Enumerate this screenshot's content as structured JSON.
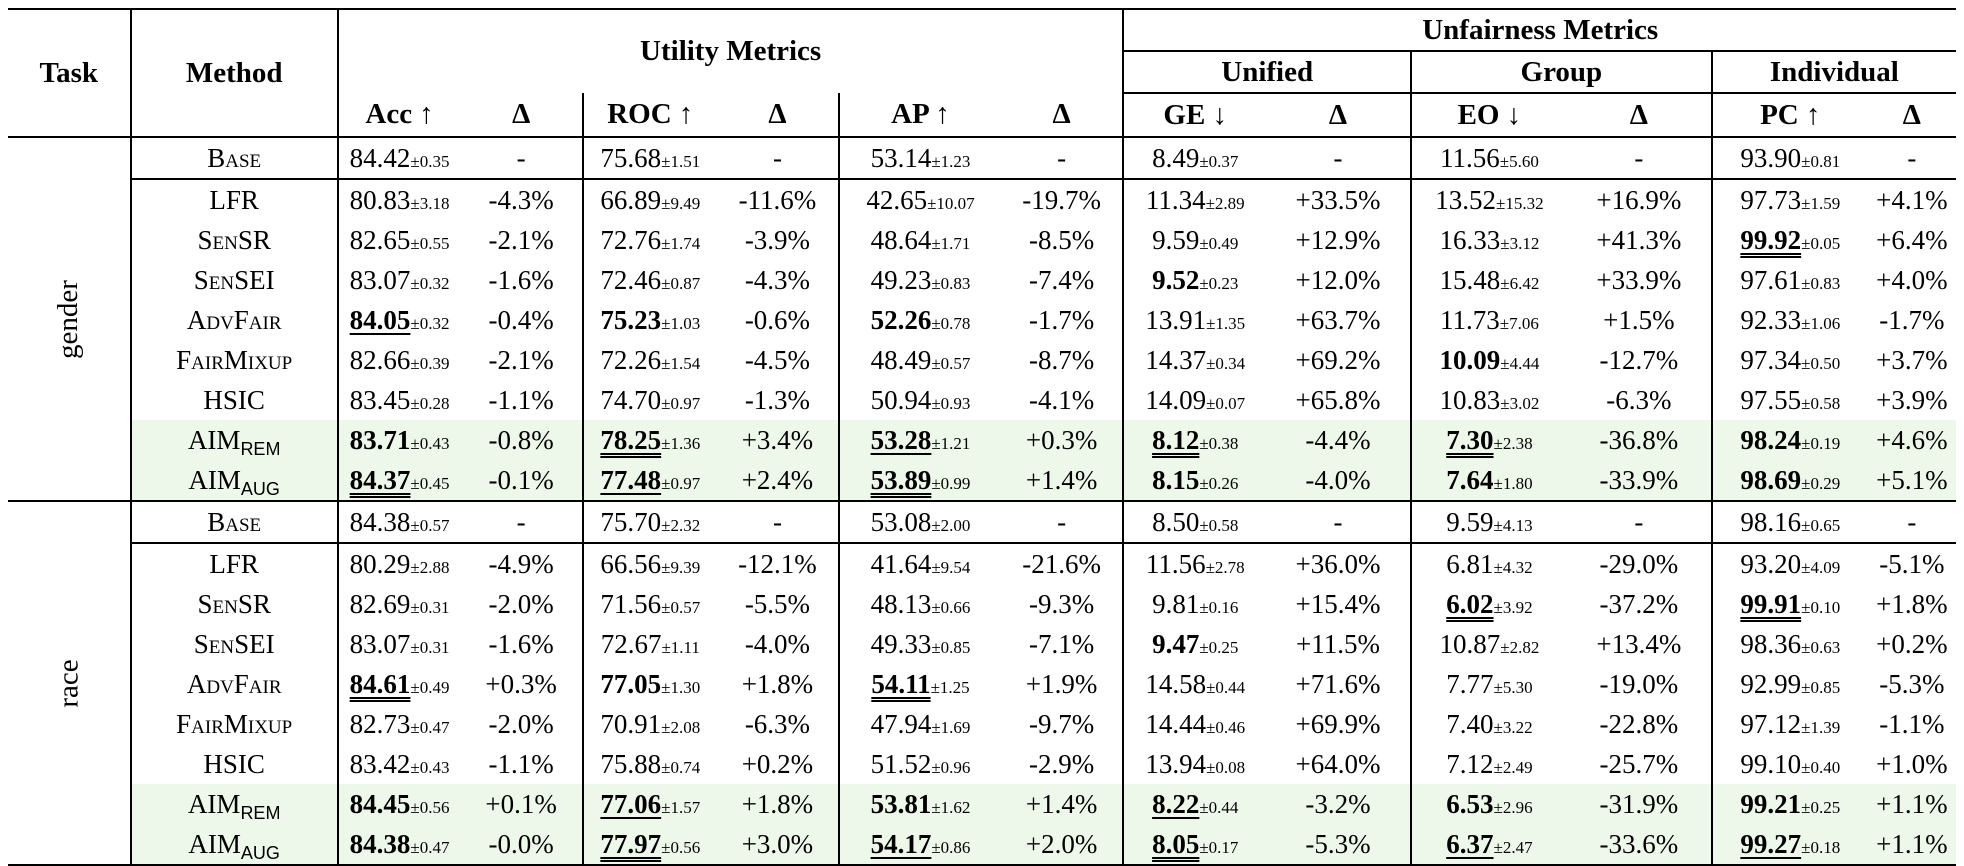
{
  "header": {
    "task": "Task",
    "method": "Method",
    "utility_metrics": "Utility Metrics",
    "unfairness_metrics": "Unfairness Metrics",
    "unified": "Unified",
    "group": "Group",
    "individual": "Individual",
    "cols": [
      "Acc ↑",
      "Δ",
      "ROC ↑",
      "Δ",
      "AP ↑",
      "Δ",
      "GE ↓",
      "Δ",
      "EO ↓",
      "Δ",
      "PC ↑",
      "Δ"
    ]
  },
  "groups": [
    {
      "task": "gender",
      "rows": [
        {
          "method": "Base",
          "smallcaps": true,
          "cells": [
            {
              "v": "84.42",
              "s": "±0.35"
            },
            {
              "v": "-"
            },
            {
              "v": "75.68",
              "s": "±1.51"
            },
            {
              "v": "-"
            },
            {
              "v": "53.14",
              "s": "±1.23"
            },
            {
              "v": "-"
            },
            {
              "v": "8.49",
              "s": "±0.37"
            },
            {
              "v": "-"
            },
            {
              "v": "11.56",
              "s": "±5.60"
            },
            {
              "v": "-"
            },
            {
              "v": "93.90",
              "s": "±0.81"
            },
            {
              "v": "-"
            }
          ]
        },
        {
          "method": "LFR",
          "cells": [
            {
              "v": "80.83",
              "s": "±3.18"
            },
            {
              "v": "-4.3%"
            },
            {
              "v": "66.89",
              "s": "±9.49"
            },
            {
              "v": "-11.6%"
            },
            {
              "v": "42.65",
              "s": "±10.07"
            },
            {
              "v": "-19.7%"
            },
            {
              "v": "11.34",
              "s": "±2.89"
            },
            {
              "v": "+33.5%"
            },
            {
              "v": "13.52",
              "s": "±15.32"
            },
            {
              "v": "+16.9%"
            },
            {
              "v": "97.73",
              "s": "±1.59"
            },
            {
              "v": "+4.1%"
            }
          ]
        },
        {
          "method": "SenSR",
          "smallcaps": true,
          "cells": [
            {
              "v": "82.65",
              "s": "±0.55"
            },
            {
              "v": "-2.1%"
            },
            {
              "v": "72.76",
              "s": "±1.74"
            },
            {
              "v": "-3.9%"
            },
            {
              "v": "48.64",
              "s": "±1.71"
            },
            {
              "v": "-8.5%"
            },
            {
              "v": "9.59",
              "s": "±0.49"
            },
            {
              "v": "+12.9%"
            },
            {
              "v": "16.33",
              "s": "±3.12"
            },
            {
              "v": "+41.3%"
            },
            {
              "v": "99.92",
              "s": "±0.05",
              "style": "b u2"
            },
            {
              "v": "+6.4%"
            }
          ]
        },
        {
          "method": "SenSEI",
          "smallcaps": true,
          "cells": [
            {
              "v": "83.07",
              "s": "±0.32"
            },
            {
              "v": "-1.6%"
            },
            {
              "v": "72.46",
              "s": "±0.87"
            },
            {
              "v": "-4.3%"
            },
            {
              "v": "49.23",
              "s": "±0.83"
            },
            {
              "v": "-7.4%"
            },
            {
              "v": "9.52",
              "s": "±0.23",
              "style": "b"
            },
            {
              "v": "+12.0%"
            },
            {
              "v": "15.48",
              "s": "±6.42"
            },
            {
              "v": "+33.9%"
            },
            {
              "v": "97.61",
              "s": "±0.83"
            },
            {
              "v": "+4.0%"
            }
          ]
        },
        {
          "method": "AdvFair",
          "smallcaps": true,
          "cells": [
            {
              "v": "84.05",
              "s": "±0.32",
              "style": "b u1"
            },
            {
              "v": "-0.4%"
            },
            {
              "v": "75.23",
              "s": "±1.03",
              "style": "b"
            },
            {
              "v": "-0.6%"
            },
            {
              "v": "52.26",
              "s": "±0.78",
              "style": "b"
            },
            {
              "v": "-1.7%"
            },
            {
              "v": "13.91",
              "s": "±1.35"
            },
            {
              "v": "+63.7%"
            },
            {
              "v": "11.73",
              "s": "±7.06"
            },
            {
              "v": "+1.5%"
            },
            {
              "v": "92.33",
              "s": "±1.06"
            },
            {
              "v": "-1.7%"
            }
          ]
        },
        {
          "method": "FairMixup",
          "smallcaps": true,
          "cells": [
            {
              "v": "82.66",
              "s": "±0.39"
            },
            {
              "v": "-2.1%"
            },
            {
              "v": "72.26",
              "s": "±1.54"
            },
            {
              "v": "-4.5%"
            },
            {
              "v": "48.49",
              "s": "±0.57"
            },
            {
              "v": "-8.7%"
            },
            {
              "v": "14.37",
              "s": "±0.34"
            },
            {
              "v": "+69.2%"
            },
            {
              "v": "10.09",
              "s": "±4.44",
              "style": "b"
            },
            {
              "v": "-12.7%"
            },
            {
              "v": "97.34",
              "s": "±0.50"
            },
            {
              "v": "+3.7%"
            }
          ]
        },
        {
          "method": "HSIC",
          "cells": [
            {
              "v": "83.45",
              "s": "±0.28"
            },
            {
              "v": "-1.1%"
            },
            {
              "v": "74.70",
              "s": "±0.97"
            },
            {
              "v": "-1.3%"
            },
            {
              "v": "50.94",
              "s": "±0.93"
            },
            {
              "v": "-4.1%"
            },
            {
              "v": "14.09",
              "s": "±0.07"
            },
            {
              "v": "+65.8%"
            },
            {
              "v": "10.83",
              "s": "±3.02"
            },
            {
              "v": "-6.3%"
            },
            {
              "v": "97.55",
              "s": "±0.58"
            },
            {
              "v": "+3.9%"
            }
          ]
        },
        {
          "method": "AIM",
          "sub": "REM",
          "hl": true,
          "cells": [
            {
              "v": "83.71",
              "s": "±0.43",
              "style": "b"
            },
            {
              "v": "-0.8%"
            },
            {
              "v": "78.25",
              "s": "±1.36",
              "style": "b u2"
            },
            {
              "v": "+3.4%"
            },
            {
              "v": "53.28",
              "s": "±1.21",
              "style": "b u1"
            },
            {
              "v": "+0.3%"
            },
            {
              "v": "8.12",
              "s": "±0.38",
              "style": "b u2"
            },
            {
              "v": "-4.4%"
            },
            {
              "v": "7.30",
              "s": "±2.38",
              "style": "b u2"
            },
            {
              "v": "-36.8%"
            },
            {
              "v": "98.24",
              "s": "±0.19",
              "style": "b"
            },
            {
              "v": "+4.6%"
            }
          ]
        },
        {
          "method": "AIM",
          "sub": "AUG",
          "hl": true,
          "cells": [
            {
              "v": "84.37",
              "s": "±0.45",
              "style": "b u2"
            },
            {
              "v": "-0.1%"
            },
            {
              "v": "77.48",
              "s": "±0.97",
              "style": "b u1"
            },
            {
              "v": "+2.4%"
            },
            {
              "v": "53.89",
              "s": "±0.99",
              "style": "b u2"
            },
            {
              "v": "+1.4%"
            },
            {
              "v": "8.15",
              "s": "±0.26",
              "style": "b"
            },
            {
              "v": "-4.0%"
            },
            {
              "v": "7.64",
              "s": "±1.80",
              "style": "b"
            },
            {
              "v": "-33.9%"
            },
            {
              "v": "98.69",
              "s": "±0.29",
              "style": "b"
            },
            {
              "v": "+5.1%"
            }
          ]
        }
      ]
    },
    {
      "task": "race",
      "rows": [
        {
          "method": "Base",
          "smallcaps": true,
          "cells": [
            {
              "v": "84.38",
              "s": "±0.57"
            },
            {
              "v": "-"
            },
            {
              "v": "75.70",
              "s": "±2.32"
            },
            {
              "v": "-"
            },
            {
              "v": "53.08",
              "s": "±2.00"
            },
            {
              "v": "-"
            },
            {
              "v": "8.50",
              "s": "±0.58"
            },
            {
              "v": "-"
            },
            {
              "v": "9.59",
              "s": "±4.13"
            },
            {
              "v": "-"
            },
            {
              "v": "98.16",
              "s": "±0.65"
            },
            {
              "v": "-"
            }
          ]
        },
        {
          "method": "LFR",
          "cells": [
            {
              "v": "80.29",
              "s": "±2.88"
            },
            {
              "v": "-4.9%"
            },
            {
              "v": "66.56",
              "s": "±9.39"
            },
            {
              "v": "-12.1%"
            },
            {
              "v": "41.64",
              "s": "±9.54"
            },
            {
              "v": "-21.6%"
            },
            {
              "v": "11.56",
              "s": "±2.78"
            },
            {
              "v": "+36.0%"
            },
            {
              "v": "6.81",
              "s": "±4.32"
            },
            {
              "v": "-29.0%"
            },
            {
              "v": "93.20",
              "s": "±4.09"
            },
            {
              "v": "-5.1%"
            }
          ]
        },
        {
          "method": "SenSR",
          "smallcaps": true,
          "cells": [
            {
              "v": "82.69",
              "s": "±0.31"
            },
            {
              "v": "-2.0%"
            },
            {
              "v": "71.56",
              "s": "±0.57"
            },
            {
              "v": "-5.5%"
            },
            {
              "v": "48.13",
              "s": "±0.66"
            },
            {
              "v": "-9.3%"
            },
            {
              "v": "9.81",
              "s": "±0.16"
            },
            {
              "v": "+15.4%"
            },
            {
              "v": "6.02",
              "s": "±3.92",
              "style": "b u2"
            },
            {
              "v": "-37.2%"
            },
            {
              "v": "99.91",
              "s": "±0.10",
              "style": "b u2"
            },
            {
              "v": "+1.8%"
            }
          ]
        },
        {
          "method": "SenSEI",
          "smallcaps": true,
          "cells": [
            {
              "v": "83.07",
              "s": "±0.31"
            },
            {
              "v": "-1.6%"
            },
            {
              "v": "72.67",
              "s": "±1.11"
            },
            {
              "v": "-4.0%"
            },
            {
              "v": "49.33",
              "s": "±0.85"
            },
            {
              "v": "-7.1%"
            },
            {
              "v": "9.47",
              "s": "±0.25",
              "style": "b"
            },
            {
              "v": "+11.5%"
            },
            {
              "v": "10.87",
              "s": "±2.82"
            },
            {
              "v": "+13.4%"
            },
            {
              "v": "98.36",
              "s": "±0.63"
            },
            {
              "v": "+0.2%"
            }
          ]
        },
        {
          "method": "AdvFair",
          "smallcaps": true,
          "cells": [
            {
              "v": "84.61",
              "s": "±0.49",
              "style": "b u2"
            },
            {
              "v": "+0.3%"
            },
            {
              "v": "77.05",
              "s": "±1.30",
              "style": "b"
            },
            {
              "v": "+1.8%"
            },
            {
              "v": "54.11",
              "s": "±1.25",
              "style": "b u2"
            },
            {
              "v": "+1.9%"
            },
            {
              "v": "14.58",
              "s": "±0.44"
            },
            {
              "v": "+71.6%"
            },
            {
              "v": "7.77",
              "s": "±5.30"
            },
            {
              "v": "-19.0%"
            },
            {
              "v": "92.99",
              "s": "±0.85"
            },
            {
              "v": "-5.3%"
            }
          ]
        },
        {
          "method": "FairMixup",
          "smallcaps": true,
          "cells": [
            {
              "v": "82.73",
              "s": "±0.47"
            },
            {
              "v": "-2.0%"
            },
            {
              "v": "70.91",
              "s": "±2.08"
            },
            {
              "v": "-6.3%"
            },
            {
              "v": "47.94",
              "s": "±1.69"
            },
            {
              "v": "-9.7%"
            },
            {
              "v": "14.44",
              "s": "±0.46"
            },
            {
              "v": "+69.9%"
            },
            {
              "v": "7.40",
              "s": "±3.22"
            },
            {
              "v": "-22.8%"
            },
            {
              "v": "97.12",
              "s": "±1.39"
            },
            {
              "v": "-1.1%"
            }
          ]
        },
        {
          "method": "HSIC",
          "cells": [
            {
              "v": "83.42",
              "s": "±0.43"
            },
            {
              "v": "-1.1%"
            },
            {
              "v": "75.88",
              "s": "±0.74"
            },
            {
              "v": "+0.2%"
            },
            {
              "v": "51.52",
              "s": "±0.96"
            },
            {
              "v": "-2.9%"
            },
            {
              "v": "13.94",
              "s": "±0.08"
            },
            {
              "v": "+64.0%"
            },
            {
              "v": "7.12",
              "s": "±2.49"
            },
            {
              "v": "-25.7%"
            },
            {
              "v": "99.10",
              "s": "±0.40"
            },
            {
              "v": "+1.0%"
            }
          ]
        },
        {
          "method": "AIM",
          "sub": "REM",
          "hl": true,
          "cells": [
            {
              "v": "84.45",
              "s": "±0.56",
              "style": "b"
            },
            {
              "v": "+0.1%"
            },
            {
              "v": "77.06",
              "s": "±1.57",
              "style": "b u1"
            },
            {
              "v": "+1.8%"
            },
            {
              "v": "53.81",
              "s": "±1.62",
              "style": "b"
            },
            {
              "v": "+1.4%"
            },
            {
              "v": "8.22",
              "s": "±0.44",
              "style": "b u1"
            },
            {
              "v": "-3.2%"
            },
            {
              "v": "6.53",
              "s": "±2.96",
              "style": "b"
            },
            {
              "v": "-31.9%"
            },
            {
              "v": "99.21",
              "s": "±0.25",
              "style": "b"
            },
            {
              "v": "+1.1%"
            }
          ]
        },
        {
          "method": "AIM",
          "sub": "AUG",
          "hl": true,
          "cells": [
            {
              "v": "84.38",
              "s": "±0.47",
              "style": "b"
            },
            {
              "v": "-0.0%"
            },
            {
              "v": "77.97",
              "s": "±0.56",
              "style": "b u2"
            },
            {
              "v": "+3.0%"
            },
            {
              "v": "54.17",
              "s": "±0.86",
              "style": "b u1"
            },
            {
              "v": "+2.0%"
            },
            {
              "v": "8.05",
              "s": "±0.17",
              "style": "b u2"
            },
            {
              "v": "-5.3%"
            },
            {
              "v": "6.37",
              "s": "±2.47",
              "style": "b u1"
            },
            {
              "v": "-33.6%"
            },
            {
              "v": "99.27",
              "s": "±0.18",
              "style": "b u1"
            },
            {
              "v": "+1.1%"
            }
          ]
        }
      ]
    }
  ],
  "colors": {
    "highlight": "#eef8ea",
    "rule": "#000000"
  }
}
